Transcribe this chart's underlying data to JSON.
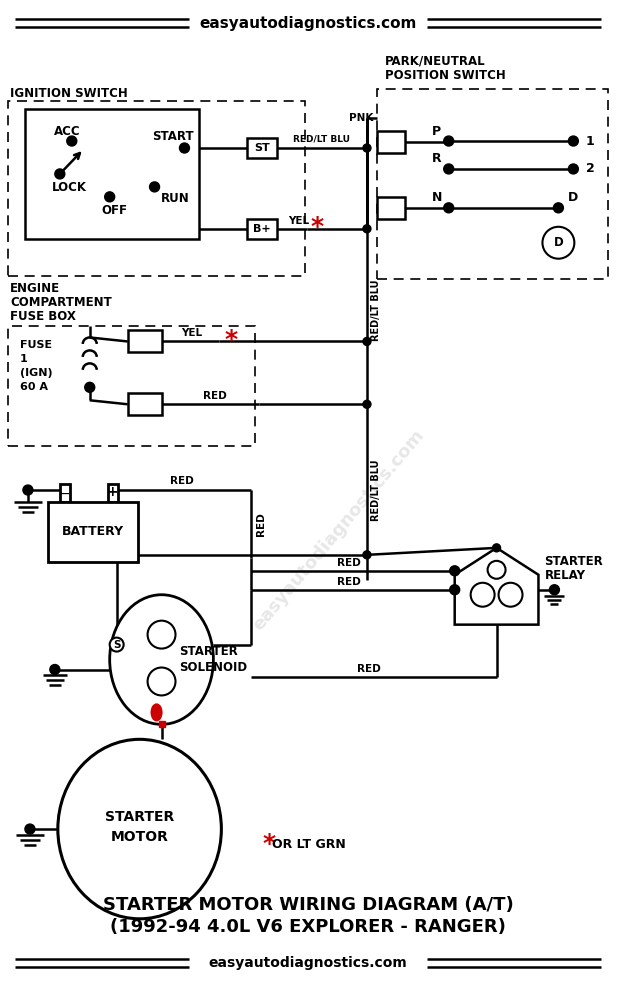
{
  "website": "easyautodiagnostics.com",
  "title_line1": "STARTER MOTOR WIRING DIAGRAM (A/T)",
  "title_line2": "(1992-94 4.0L V6 EXPLORER - RANGER)",
  "bg_color": "#ffffff",
  "black": "#000000",
  "red": "#cc0000"
}
